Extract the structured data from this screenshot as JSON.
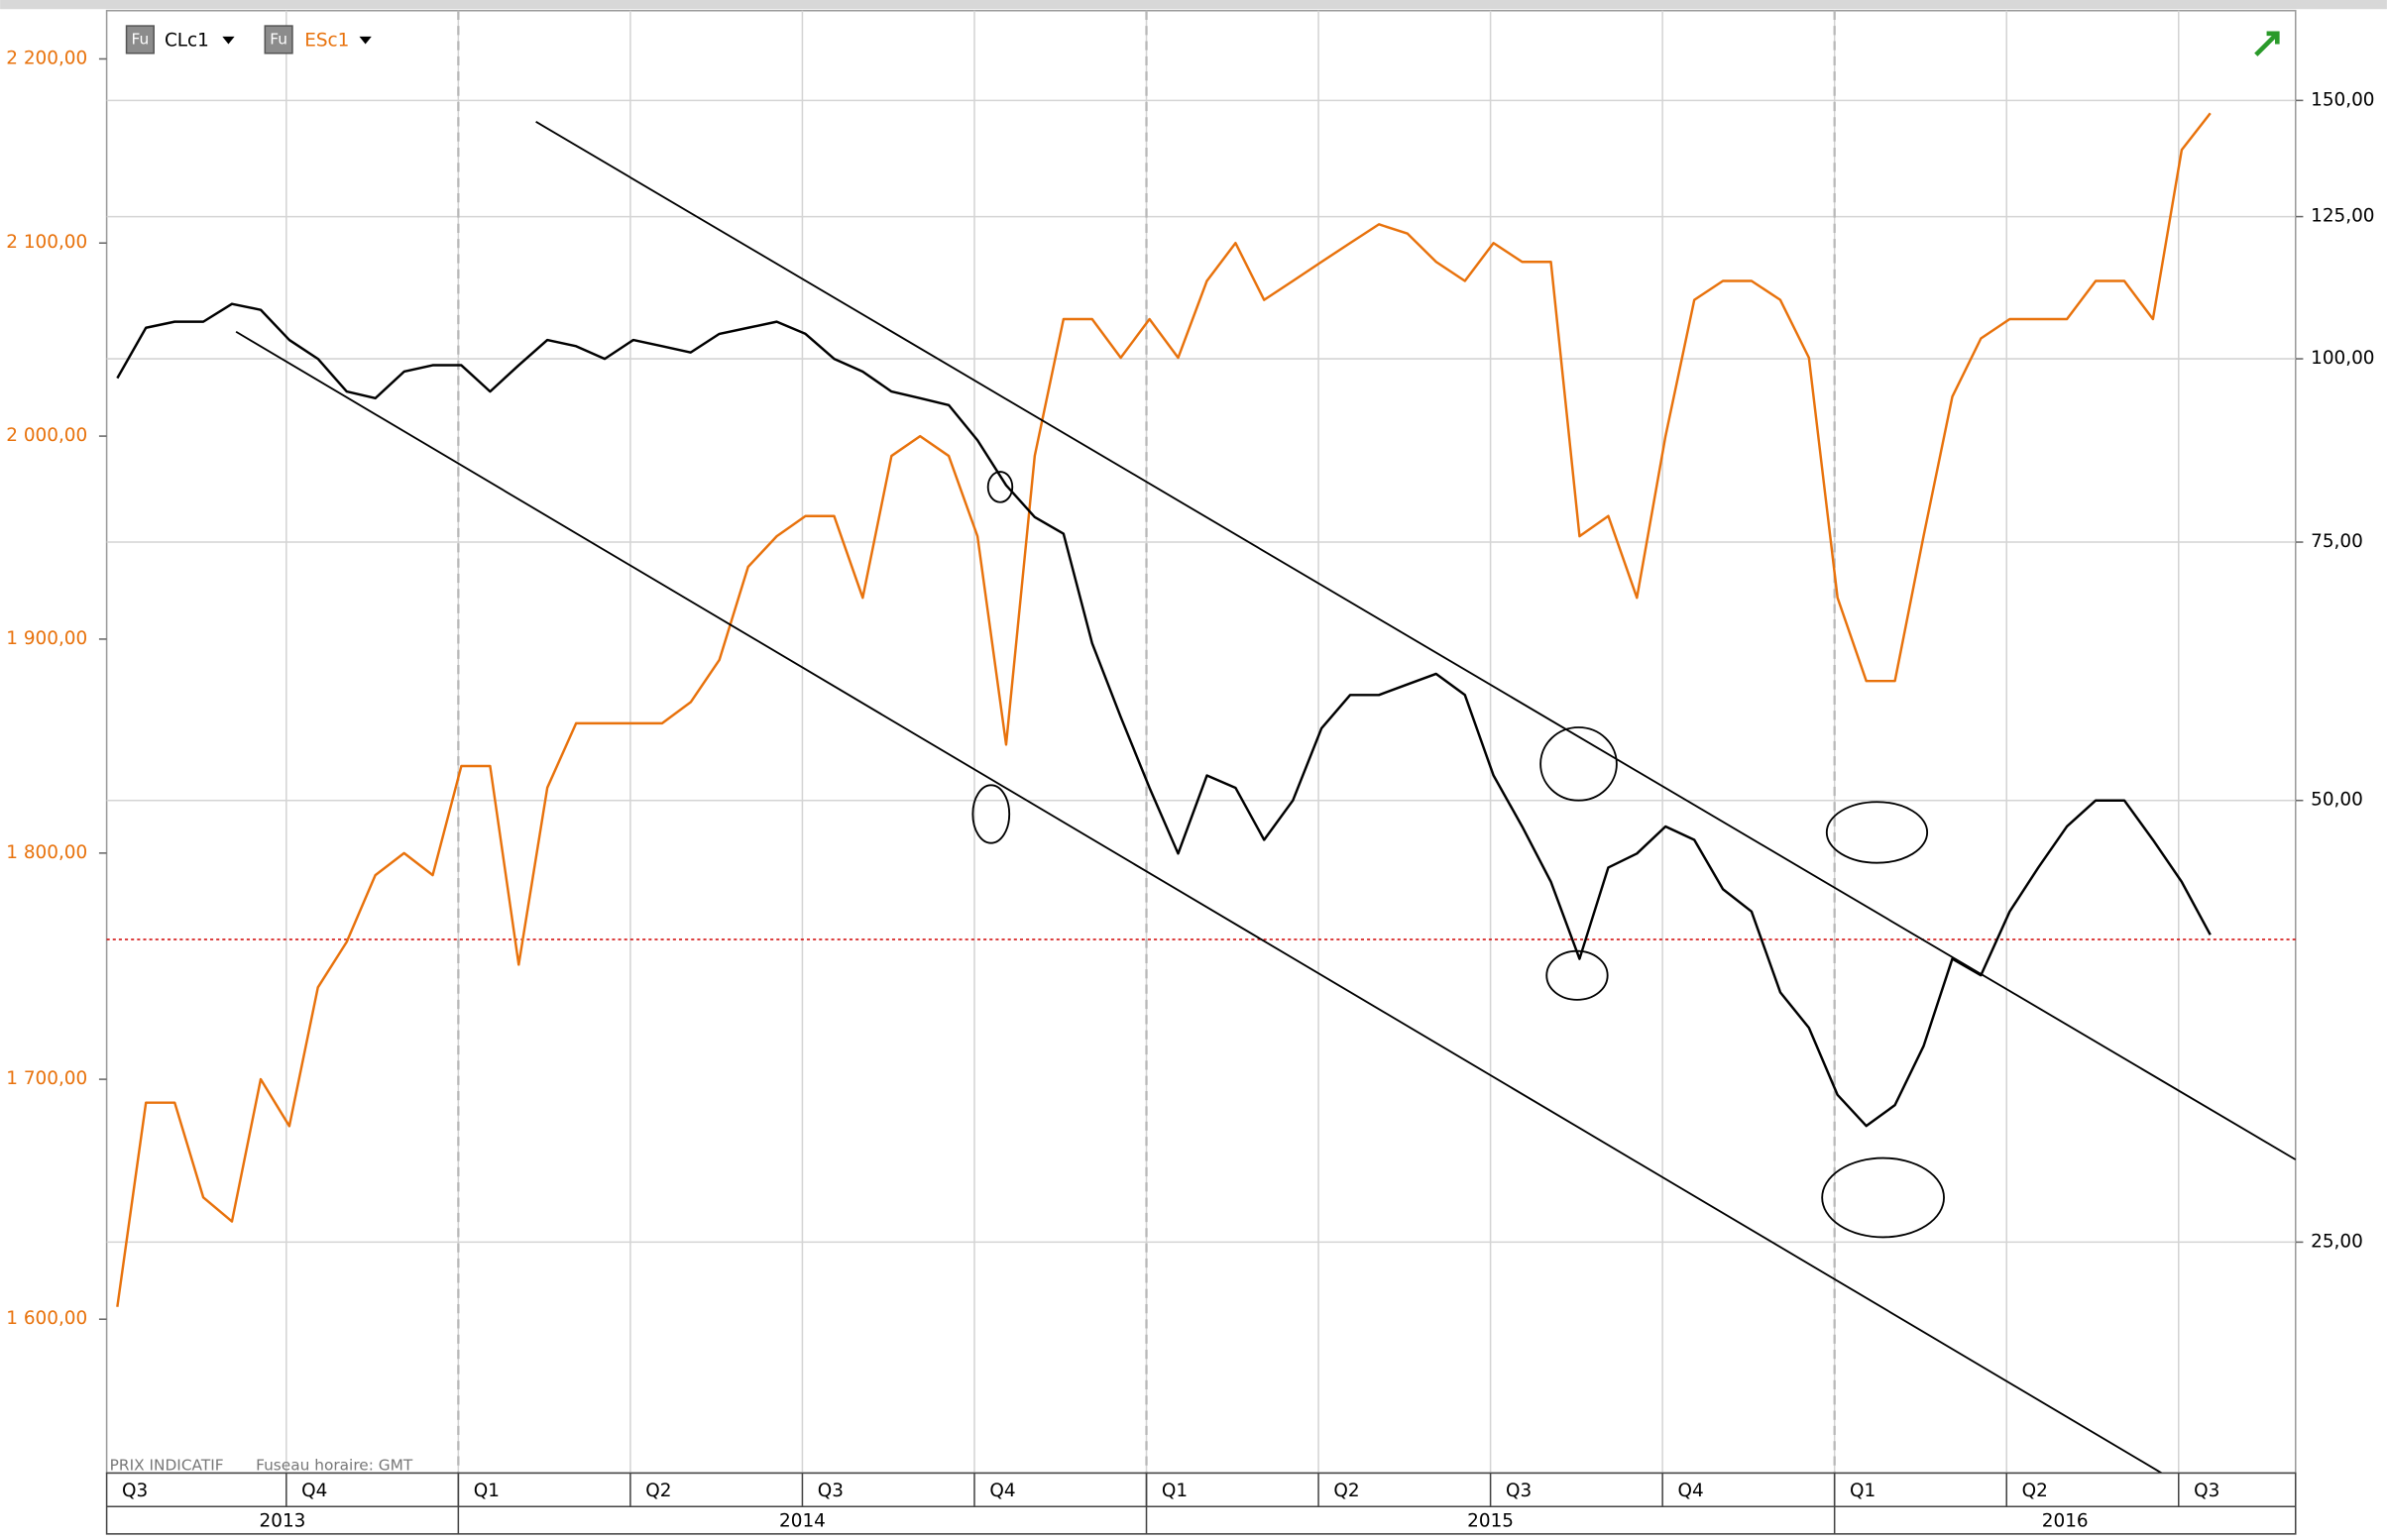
{
  "chart_data": {
    "type": "line",
    "log_scale": true,
    "grid": "y2",
    "categories": [
      "Q3",
      null,
      null,
      null,
      null,
      null,
      "Q4",
      null,
      null,
      null,
      null,
      null,
      "Q1",
      null,
      null,
      null,
      null,
      null,
      "Q2",
      null,
      null,
      null,
      null,
      null,
      "Q3",
      null,
      null,
      null,
      null,
      null,
      "Q4",
      null,
      null,
      null,
      null,
      null,
      "Q1",
      null,
      null,
      null,
      null,
      null,
      "Q2",
      null,
      null,
      null,
      null,
      null,
      "Q3",
      null,
      null,
      null,
      null,
      null,
      "Q4",
      null,
      null,
      null,
      null,
      null,
      "Q1",
      null,
      null,
      null,
      null,
      null,
      "Q2",
      null,
      null,
      null,
      null,
      null,
      "Q3",
      null
    ],
    "year_labels": [
      "2013",
      null,
      null,
      null,
      null,
      null,
      null,
      null,
      null,
      null,
      null,
      null,
      "2014",
      null,
      null,
      null,
      null,
      null,
      null,
      null,
      null,
      null,
      null,
      null,
      null,
      null,
      null,
      null,
      null,
      null,
      null,
      null,
      null,
      null,
      null,
      null,
      "2015",
      null,
      null,
      null,
      null,
      null,
      null,
      null,
      null,
      null,
      null,
      null,
      null,
      null,
      null,
      null,
      null,
      null,
      null,
      null,
      null,
      null,
      null,
      null,
      "2016",
      null,
      null,
      null,
      null,
      null,
      null,
      null,
      null,
      null,
      null,
      null,
      null,
      null
    ],
    "series": [
      {
        "name": "CLc1",
        "color": "#000000",
        "axis": "y2",
        "values": [
          97,
          105,
          106,
          106,
          109,
          108,
          103,
          100,
          95,
          94,
          98,
          99,
          99,
          95,
          99,
          103,
          102,
          100,
          103,
          102,
          101,
          104,
          105,
          106,
          104,
          100,
          98,
          95,
          94,
          93,
          88,
          82,
          78,
          76,
          64,
          57,
          51,
          46,
          52,
          51,
          47,
          50,
          56,
          59,
          59,
          60,
          61,
          59,
          52,
          48,
          44,
          39,
          45,
          46,
          48,
          47,
          43.5,
          42,
          37,
          35,
          31.5,
          30,
          31,
          34,
          39,
          38,
          42,
          45,
          48,
          50,
          50,
          47,
          44,
          40.5
        ]
      },
      {
        "name": "ESc1",
        "color": "#e8720c",
        "axis": "y",
        "values": [
          1605,
          1690,
          1690,
          1650,
          1640,
          1700,
          1680,
          1740,
          1760,
          1790,
          1800,
          1790,
          1840,
          1840,
          1750,
          1830,
          1860,
          1860,
          1860,
          1860,
          1870,
          1890,
          1935,
          1950,
          1960,
          1960,
          1920,
          1990,
          2000,
          1990,
          1950,
          1850,
          1990,
          2060,
          2060,
          2040,
          2060,
          2040,
          2080,
          2100,
          2070,
          2080,
          2090,
          2100,
          2110,
          2105,
          2090,
          2080,
          2100,
          2090,
          2090,
          1950,
          1960,
          1920,
          2000,
          2070,
          2080,
          2080,
          2070,
          2040,
          1920,
          1880,
          1880,
          1950,
          2020,
          2050,
          2060,
          2060,
          2060,
          2080,
          2080,
          2060,
          2150,
          2170
        ]
      }
    ],
    "ylim": [
      1539,
      2227
    ],
    "yticks": [
      {
        "value": 1600,
        "label": "1 600,00"
      },
      {
        "value": 1700,
        "label": "1 700,00"
      },
      {
        "value": 1800,
        "label": "1 800,00"
      },
      {
        "value": 1900,
        "label": "1 900,00"
      },
      {
        "value": 2000,
        "label": "2 000,00"
      },
      {
        "value": 2100,
        "label": "2 100,00"
      },
      {
        "value": 2200,
        "label": "2 200,00"
      }
    ],
    "y2lim": [
      17.4,
      172.7
    ],
    "y2ticks": [
      {
        "value": 25,
        "label": "25,00"
      },
      {
        "value": 50,
        "label": "50,00"
      },
      {
        "value": 75,
        "label": "75,00"
      },
      {
        "value": 100,
        "label": "100,00"
      },
      {
        "value": 125,
        "label": "125,00"
      },
      {
        "value": 150,
        "label": "150,00"
      }
    ],
    "reference_line": {
      "value": 40.2,
      "axis": "y2",
      "color": "#d00000"
    },
    "footer_note": [
      "PRIX INDICATIF",
      "Fuseau horaire: GMT"
    ],
    "legend_icon": "Fu"
  }
}
